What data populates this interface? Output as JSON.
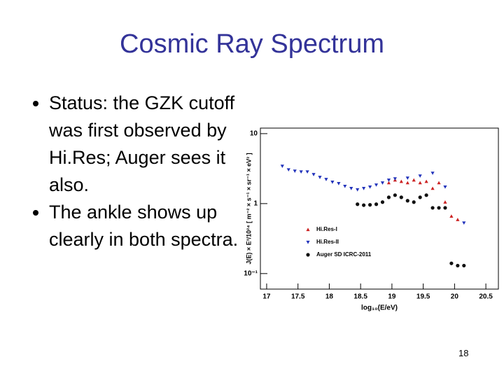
{
  "slide": {
    "title": "Cosmic Ray Spectrum",
    "bullets": [
      "Status:  the GZK cutoff was first observed by Hi.Res; Auger sees it also.",
      "The ankle shows up clearly in both spectra."
    ],
    "page_number": "18"
  },
  "chart_data": {
    "type": "scatter",
    "x_label": "log₁₀(E/eV)",
    "y_label": "J(E) × E³/10²⁴  [ m⁻² × s⁻¹ × sr⁻¹ × eV² ]",
    "xlim": [
      16.9,
      20.7
    ],
    "xticks": [
      17,
      17.5,
      18,
      18.5,
      19,
      19.5,
      20,
      20.5
    ],
    "ylim": [
      0.06,
      12
    ],
    "yticks": [
      10,
      1,
      {
        "value": 0.1,
        "label": "10⁻¹"
      }
    ],
    "y_scale": "log",
    "legend": "center-left",
    "series": [
      {
        "name": "Hi.Res-I",
        "color": "#cc2222",
        "marker": "triangle-up",
        "x": [
          18.95,
          19.05,
          19.15,
          19.25,
          19.35,
          19.45,
          19.55,
          19.65,
          19.75,
          19.85,
          19.95,
          20.05
        ],
        "values": [
          1.98,
          2.17,
          2.07,
          1.98,
          2.17,
          1.98,
          2.07,
          1.65,
          1.98,
          1.05,
          0.66,
          0.59
        ]
      },
      {
        "name": "Hi.Res-II",
        "color": "#2233bb",
        "marker": "triangle-down",
        "x": [
          17.25,
          17.35,
          17.45,
          17.55,
          17.65,
          17.75,
          17.85,
          17.95,
          18.05,
          18.15,
          18.25,
          18.35,
          18.45,
          18.55,
          18.65,
          18.75,
          18.85,
          18.95,
          19.05,
          19.25,
          19.45,
          19.65,
          19.85,
          20.15
        ],
        "values": [
          3.43,
          3.05,
          2.92,
          2.85,
          2.85,
          2.61,
          2.38,
          2.22,
          2.03,
          1.94,
          1.77,
          1.65,
          1.58,
          1.65,
          1.73,
          1.85,
          1.98,
          2.17,
          2.27,
          2.32,
          2.49,
          2.73,
          1.73,
          0.53
        ]
      },
      {
        "name": "Auger SD ICRC-2011",
        "color": "#111111",
        "marker": "circle",
        "x": [
          18.45,
          18.55,
          18.65,
          18.75,
          18.85,
          18.95,
          19.05,
          19.15,
          19.25,
          19.35,
          19.45,
          19.55,
          19.65,
          19.75,
          19.85,
          19.95,
          20.05,
          20.15
        ],
        "values": [
          0.98,
          0.95,
          0.96,
          0.98,
          1.05,
          1.23,
          1.32,
          1.23,
          1.1,
          1.05,
          1.23,
          1.32,
          0.87,
          0.87,
          0.87,
          0.14,
          0.13,
          0.13
        ]
      }
    ]
  }
}
